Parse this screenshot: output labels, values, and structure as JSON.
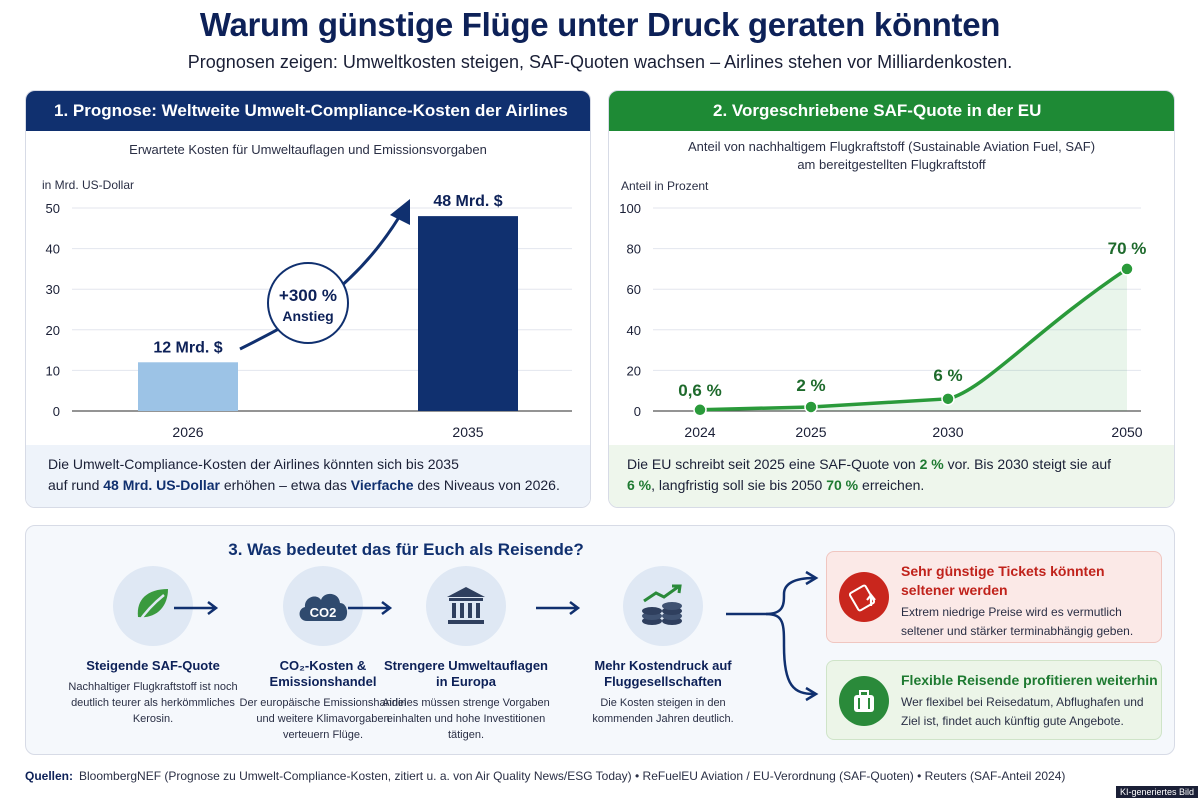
{
  "title": "Warum günstige Flüge unter Druck geraten könnten",
  "subtitle": "Prognosen zeigen: Umweltkosten steigen, SAF-Quoten wachsen – Airlines stehen vor Milliardenkosten.",
  "panel1": {
    "header": "1. Prognose: Weltweite Umwelt-Compliance-Kosten der Airlines",
    "chart_title": "Erwartete Kosten für Umweltauflagen und Emissionsvorgaben",
    "unit_label": "in Mrd. US-Dollar",
    "badge_line1": "+300 %",
    "badge_line2": "Anstieg",
    "footer_pre": "Die Umwelt-Compliance-Kosten der Airlines könnten sich bis 2035",
    "footer_b1_pre": "auf rund ",
    "footer_b1": "48 Mrd. US-Dollar",
    "footer_mid": " erhöhen – etwa das ",
    "footer_b2": "Vierfache",
    "footer_end": " des Niveaus von 2026."
  },
  "panel2": {
    "header": "2.  Vorgeschriebene SAF-Quote in der EU",
    "chart_title_1": "Anteil von nachhaltigem Flugkraftstoff (Sustainable Aviation Fuel, SAF)",
    "chart_title_2": "am bereitgestellten Flugkraftstoff",
    "unit_label": "Anteil in Prozent",
    "footer_a": "Die EU schreibt seit 2025 eine SAF-Quote von ",
    "footer_b1": "2 %",
    "footer_c": " vor. Bis 2030 steigt sie auf",
    "footer_b2": "6 %",
    "footer_d": ", langfristig soll sie bis 2050 ",
    "footer_b3": "70 %",
    "footer_e": " erreichen."
  },
  "chart_data": [
    {
      "type": "bar",
      "categories": [
        "2026",
        "2035"
      ],
      "values": [
        12,
        48
      ],
      "data_labels": [
        "12 Mrd. $",
        "48 Mrd. $"
      ],
      "title": "Erwartete Kosten für Umweltauflagen und Emissionsvorgaben",
      "ylabel": "in Mrd. US-Dollar",
      "ylim": [
        0,
        50
      ],
      "yticks": [
        0,
        10,
        20,
        30,
        40,
        50
      ],
      "colors": [
        "#9cc3e6",
        "#10306f"
      ],
      "grid": true
    },
    {
      "type": "line",
      "x": [
        "2024",
        "2025",
        "2030",
        "2050"
      ],
      "values": [
        0.6,
        2,
        6,
        70
      ],
      "data_labels": [
        "0,6 %",
        "2 %",
        "6 %",
        "70 %"
      ],
      "title": "Anteil von nachhaltigem Flugkraftstoff (Sustainable Aviation Fuel, SAF) am bereitgestellten Flugkraftstoff",
      "ylabel": "Anteil in Prozent",
      "ylim": [
        0,
        100
      ],
      "yticks": [
        0,
        20,
        40,
        60,
        80,
        100
      ],
      "color": "#2a9a3a",
      "area_fill": true,
      "grid": true
    }
  ],
  "section3": {
    "title": "3. Was bedeutet das für Euch als Reisende?",
    "steps": [
      {
        "icon": "leaf-icon",
        "title": "Steigende SAF-Quote",
        "desc": "Nachhaltiger Flugkraftstoff ist noch deutlich teurer als herkömmliches Kerosin."
      },
      {
        "icon": "co2-cloud-icon",
        "icon_text": "CO2",
        "title": "CO₂-Kosten & Emissionshandel",
        "desc": "Der europäische Emissionshandel und weitere Klimavorgaben verteuern Flüge."
      },
      {
        "icon": "government-building-icon",
        "title": "Strengere Umweltauflagen in Europa",
        "desc": "Airlines müssen strenge Vorgaben einhalten und hohe Investitionen tätigen."
      },
      {
        "icon": "coins-growth-icon",
        "title": "Mehr Kostendruck auf Fluggesellschaften",
        "desc": "Die Kosten steigen in den kommenden Jahren deutlich."
      }
    ],
    "outcomes": [
      {
        "icon": "ticket-up-icon",
        "title": "Sehr günstige Tickets könnten seltener werden",
        "desc": "Extrem niedrige Preise wird es vermutlich seltener und stärker terminabhängig geben.",
        "color": "#c0221b"
      },
      {
        "icon": "suitcase-icon",
        "title": "Flexible Reisende profitieren weiterhin",
        "desc": "Wer flexibel bei Reisedatum, Abflughafen und Ziel ist, findet auch künftig gute Angebote.",
        "color": "#1e7a31"
      }
    ]
  },
  "sources": {
    "label": "Quellen:",
    "text": "BloombergNEF (Prognose zu Umwelt-Compliance-Kosten, zitiert u. a. von Air Quality News/ESG Today)  •  ReFuelEU Aviation / EU-Verordnung (SAF-Quoten)  •  Reuters (SAF-Anteil 2024)"
  },
  "ai_badge": "KI-generiertes Bild"
}
